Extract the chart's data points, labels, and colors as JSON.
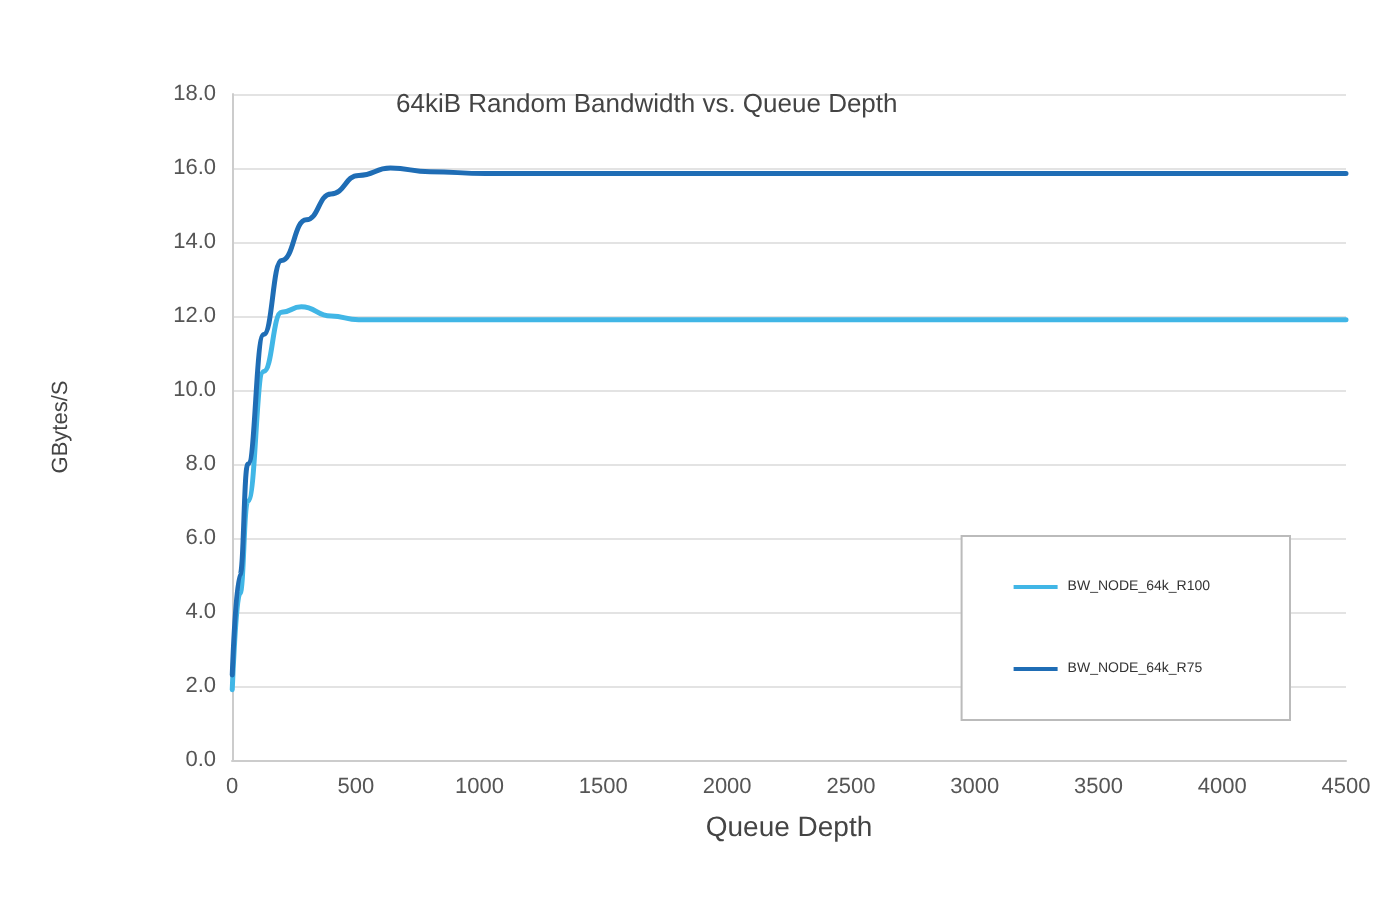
{
  "chart_data": {
    "type": "line",
    "title": "64kiB Random Bandwidth vs. Queue Depth",
    "xlabel": "Queue Depth",
    "ylabel": "GBytes/S",
    "series": [
      {
        "name": "BW_NODE_64k_R100",
        "color": "#41b6e6",
        "x": [
          1,
          32,
          64,
          128,
          200,
          280,
          400,
          512,
          1024,
          2048,
          4500
        ],
        "values": [
          1.9,
          4.5,
          7.0,
          10.5,
          12.1,
          12.25,
          12.0,
          11.9,
          11.9,
          11.9,
          11.9
        ]
      },
      {
        "name": "BW_NODE_64k_R75",
        "color": "#1f6db5",
        "x": [
          1,
          32,
          64,
          128,
          200,
          300,
          400,
          512,
          640,
          800,
          1024,
          2048,
          4500
        ],
        "values": [
          2.3,
          5.0,
          8.0,
          11.5,
          13.5,
          14.6,
          15.3,
          15.8,
          16.0,
          15.9,
          15.85,
          15.85,
          15.85
        ]
      }
    ],
    "xlim": [
      0,
      4500
    ],
    "xticks": [
      0,
      500,
      1000,
      1500,
      2000,
      2500,
      3000,
      3500,
      4000,
      4500
    ],
    "ylim": [
      0,
      18
    ],
    "yticks": [
      {
        "value": 0,
        "label": "0.0"
      },
      {
        "value": 2,
        "label": "2.0"
      },
      {
        "value": 4,
        "label": "4.0"
      },
      {
        "value": 6,
        "label": "6.0"
      },
      {
        "value": 8,
        "label": "8.0"
      },
      {
        "value": 10,
        "label": "10.0"
      },
      {
        "value": 12,
        "label": "12.0"
      },
      {
        "value": 14,
        "label": "14.0"
      },
      {
        "value": 16,
        "label": "16.0"
      },
      {
        "value": 18,
        "label": "18.0"
      }
    ],
    "grid": "y",
    "legend": "bottom right",
    "marker": "none",
    "line_style": "solid"
  }
}
